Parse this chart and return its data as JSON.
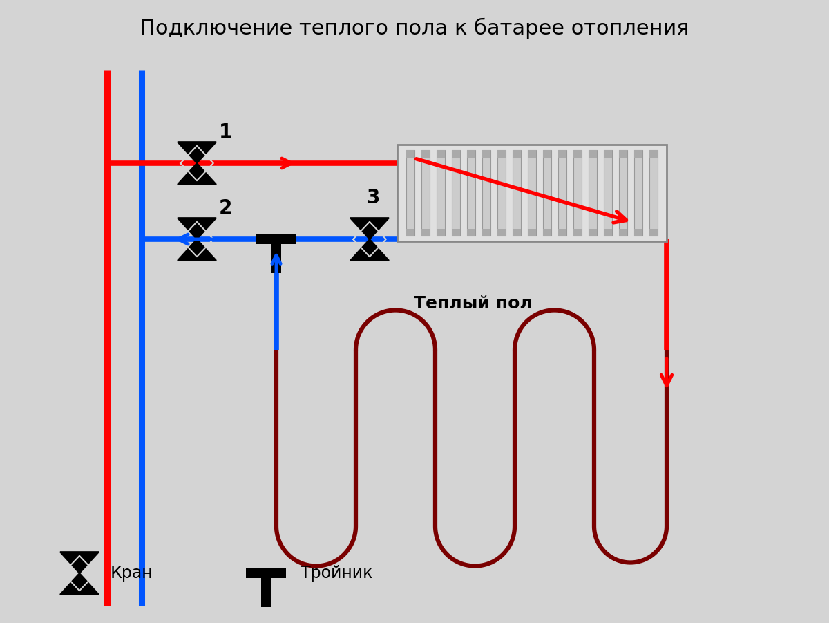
{
  "title": "Подключение теплого пола к батарее отопления",
  "title_fontsize": 22,
  "bg_color": "#d4d4d4",
  "red_color": "#ff0000",
  "blue_color": "#0055ff",
  "dark_red_color": "#7a0000",
  "black_color": "#000000",
  "radiator_fill": "#e8e8e8",
  "radiator_stroke": "#aaaaaa",
  "legend_kran": "Кран",
  "legend_troienik": "Тройник",
  "label_teplyi_pol": "Теплый пол",
  "label_1": "1",
  "label_2": "2",
  "label_3": "3",
  "pipe_lw": 5.5,
  "floor_lw": 4.5
}
